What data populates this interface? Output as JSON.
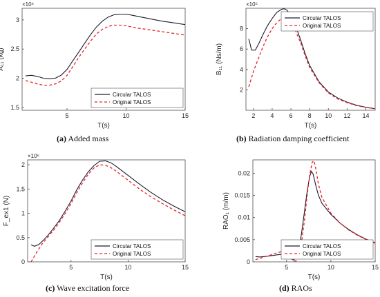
{
  "chart_data": [
    {
      "type": "line",
      "id": "a",
      "caption_letter": "(a)",
      "caption_text": " Added mass",
      "xlabel": "T(s)",
      "ylabel": "A₁₁ (kg)",
      "multiplier": "×10⁶",
      "xlim": [
        1.2,
        15
      ],
      "ylim": [
        1.45,
        3.2
      ],
      "xticks": [
        5,
        10,
        15
      ],
      "yticks": [
        1.5,
        2,
        2.5,
        3
      ],
      "legend_position": "bottom-right",
      "series": [
        {
          "name": "Circular TALOS",
          "color": "#1a1a2e",
          "dash": "solid",
          "x": [
            1.5,
            2,
            2.5,
            3,
            3.5,
            4,
            4.5,
            5,
            5.5,
            6,
            6.5,
            7,
            7.5,
            8,
            8.5,
            9,
            9.5,
            10,
            10.5,
            11,
            12,
            13,
            14,
            15
          ],
          "y": [
            2.04,
            2.05,
            2.03,
            2.0,
            1.99,
            2.0,
            2.05,
            2.15,
            2.3,
            2.45,
            2.6,
            2.75,
            2.88,
            2.98,
            3.05,
            3.09,
            3.1,
            3.1,
            3.08,
            3.06,
            3.02,
            2.98,
            2.95,
            2.92
          ]
        },
        {
          "name": "Original TALOS",
          "color": "#e8222a",
          "dash": "dashed",
          "x": [
            1.5,
            2,
            2.5,
            3,
            3.5,
            4,
            4.5,
            5,
            5.5,
            6,
            6.5,
            7,
            7.5,
            8,
            8.5,
            9,
            9.5,
            10,
            10.5,
            11,
            12,
            13,
            14,
            15
          ],
          "y": [
            1.96,
            1.93,
            1.9,
            1.88,
            1.88,
            1.9,
            1.95,
            2.05,
            2.2,
            2.36,
            2.5,
            2.64,
            2.76,
            2.84,
            2.89,
            2.91,
            2.91,
            2.9,
            2.88,
            2.86,
            2.83,
            2.8,
            2.77,
            2.74
          ]
        }
      ]
    },
    {
      "type": "line",
      "id": "b",
      "caption_letter": "(b)",
      "caption_text": " Radiation damping coefficient",
      "xlabel": "T(s)",
      "ylabel": "B₁₁ (Ns/m)",
      "multiplier": "×10⁵",
      "xlim": [
        1.2,
        15
      ],
      "ylim": [
        0,
        10
      ],
      "xticks": [
        2,
        4,
        6,
        8,
        10,
        12,
        14
      ],
      "yticks": [
        2,
        4,
        6,
        8
      ],
      "legend_position": "top-right",
      "series": [
        {
          "name": "Circular TALOS",
          "color": "#1a1a2e",
          "dash": "solid",
          "x": [
            1.5,
            1.8,
            2.2,
            2.6,
            3,
            3.5,
            4,
            4.5,
            5,
            5.3,
            5.6,
            6,
            6.5,
            7,
            7.5,
            8,
            9,
            10,
            11,
            12,
            13,
            14,
            15
          ],
          "y": [
            7.0,
            5.9,
            5.9,
            6.6,
            7.4,
            8.3,
            9.0,
            9.6,
            9.9,
            9.95,
            9.8,
            9.3,
            8.3,
            7.0,
            5.6,
            4.4,
            2.8,
            1.8,
            1.2,
            0.8,
            0.5,
            0.3,
            0.15
          ]
        },
        {
          "name": "Original TALOS",
          "color": "#e8222a",
          "dash": "dashed",
          "x": [
            1.5,
            2,
            2.5,
            3,
            3.5,
            4,
            4.5,
            5,
            5.3,
            5.6,
            6,
            6.5,
            7,
            7.5,
            8,
            9,
            10,
            11,
            12,
            13,
            14,
            15
          ],
          "y": [
            2.3,
            3.8,
            5.0,
            6.2,
            7.2,
            8.0,
            8.6,
            9.0,
            9.1,
            9.0,
            8.6,
            7.8,
            6.7,
            5.4,
            4.2,
            2.7,
            1.7,
            1.1,
            0.75,
            0.45,
            0.28,
            0.15
          ]
        }
      ]
    },
    {
      "type": "line",
      "id": "c",
      "caption_letter": "(c)",
      "caption_text": " Wave excitation force",
      "xlabel": "T(s)",
      "ylabel": "F_ex1 (N)",
      "multiplier": "×10⁶",
      "xlim": [
        1.2,
        15
      ],
      "ylim": [
        0,
        2.1
      ],
      "xticks": [
        5,
        10,
        15
      ],
      "yticks": [
        0,
        0.5,
        1,
        1.5,
        2
      ],
      "legend_position": "bottom-right",
      "series": [
        {
          "name": "Circular TALOS",
          "color": "#1a1a2e",
          "dash": "solid",
          "x": [
            1.5,
            1.8,
            2.2,
            2.6,
            3,
            3.5,
            4,
            4.5,
            5,
            5.5,
            6,
            6.5,
            7,
            7.5,
            8,
            8.5,
            9,
            10,
            11,
            12,
            13,
            14,
            15
          ],
          "y": [
            0.35,
            0.32,
            0.36,
            0.45,
            0.55,
            0.7,
            0.86,
            1.05,
            1.25,
            1.48,
            1.68,
            1.85,
            1.98,
            2.07,
            2.08,
            2.04,
            1.96,
            1.78,
            1.6,
            1.43,
            1.28,
            1.15,
            1.03
          ]
        },
        {
          "name": "Original TALOS",
          "color": "#e8222a",
          "dash": "dashed",
          "x": [
            1.5,
            2,
            2.5,
            3,
            3.5,
            4,
            4.5,
            5,
            5.5,
            6,
            6.5,
            7,
            7.5,
            8,
            8.5,
            9,
            10,
            11,
            12,
            13,
            14,
            15
          ],
          "y": [
            0.0,
            0.2,
            0.38,
            0.52,
            0.66,
            0.82,
            1.0,
            1.2,
            1.42,
            1.62,
            1.8,
            1.93,
            2.0,
            1.99,
            1.94,
            1.86,
            1.68,
            1.5,
            1.34,
            1.2,
            1.07,
            0.95
          ]
        }
      ]
    },
    {
      "type": "line",
      "id": "d",
      "caption_letter": "(d)",
      "caption_text": " RAOs",
      "xlabel": "T(s)",
      "ylabel": "RAO₁ (m/m)",
      "multiplier": "",
      "xlim": [
        1.2,
        15
      ],
      "ylim": [
        0,
        0.023
      ],
      "xticks": [
        5,
        10,
        15
      ],
      "yticks": [
        0,
        0.005,
        0.01,
        0.015,
        0.02
      ],
      "ytick_labels": [
        "0",
        "0.005",
        "0.01",
        "0.015",
        "0.02"
      ],
      "legend_position": "bottom-right",
      "series": [
        {
          "name": "Circular TALOS",
          "color": "#1a1a2e",
          "dash": "solid",
          "x": [
            1.5,
            2,
            3,
            4,
            4.5,
            5,
            5.5,
            5.8,
            6.1,
            6.4,
            6.7,
            7,
            7.3,
            7.6,
            7.8,
            8.0,
            8.3,
            8.6,
            9,
            10,
            11,
            12,
            13,
            14,
            15
          ],
          "y": [
            0.0012,
            0.0011,
            0.0013,
            0.0016,
            0.0017,
            0.0014,
            0.0007,
            0.0004,
            0.0012,
            0.003,
            0.0065,
            0.011,
            0.0155,
            0.0192,
            0.0204,
            0.0198,
            0.0172,
            0.015,
            0.0132,
            0.0107,
            0.0088,
            0.0073,
            0.0061,
            0.0051,
            0.0043
          ]
        },
        {
          "name": "Original TALOS",
          "color": "#e8222a",
          "dash": "dashed",
          "x": [
            1.5,
            2,
            3,
            4,
            4.5,
            5,
            5.5,
            5.8,
            6.1,
            6.4,
            6.7,
            7,
            7.3,
            7.6,
            7.9,
            8.1,
            8.3,
            8.6,
            9,
            10,
            11,
            12,
            13,
            14,
            15
          ],
          "y": [
            0.0005,
            0.0008,
            0.0014,
            0.0021,
            0.0023,
            0.002,
            0.0009,
            0.0002,
            0.0002,
            0.0015,
            0.0045,
            0.009,
            0.0145,
            0.0195,
            0.0225,
            0.0228,
            0.021,
            0.0175,
            0.0145,
            0.011,
            0.0088,
            0.0072,
            0.006,
            0.005,
            0.0042
          ]
        }
      ]
    }
  ]
}
